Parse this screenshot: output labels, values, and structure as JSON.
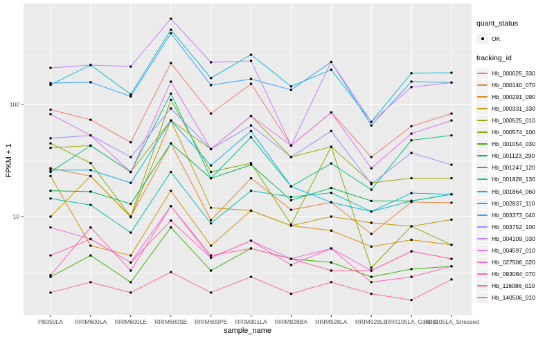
{
  "legend": {
    "quant_status_title": "quant_status",
    "ok_label": "OK",
    "tracking_id_title": "tracking_id"
  },
  "chart_data": {
    "type": "line",
    "title": "",
    "xlabel": "sample_name",
    "ylabel": "FPKM + 1",
    "x_scale": "discrete",
    "y_scale": "log10",
    "y_ticks": [
      10,
      100
    ],
    "y_minor_ticks": [
      3.162,
      31.623,
      316.23
    ],
    "ylim": [
      1.3,
      730
    ],
    "grid": "on",
    "legend_position": "right",
    "panel_bg": "#EBEBEB",
    "grid_color": "#FFFFFF",
    "marker": "point",
    "marker_color": "#000000",
    "axis_text_color": "#4D4D4D",
    "categories": [
      "PB350LA",
      "RRIM600LA",
      "RRIM600LE",
      "RRIM600SE",
      "RRIM600PE",
      "RRIM901LA",
      "RRIM928BA",
      "RRIM928LA",
      "RRIM928LE",
      "RRII105LA_Control",
      "RRII105LA_Stressed"
    ],
    "series": [
      {
        "name": "Hb_000025_330",
        "color": "#F8766D",
        "values": [
          90,
          73,
          46,
          234,
          83,
          153,
          43,
          85,
          34,
          64,
          83
        ]
      },
      {
        "name": "Hb_000140_070",
        "color": "#EA8331",
        "values": [
          27,
          23,
          10,
          45,
          9.3,
          22,
          11.5,
          13.4,
          7,
          13.5,
          13.3
        ]
      },
      {
        "name": "Hb_000291_090",
        "color": "#D89000",
        "values": [
          23,
          5.5,
          4.5,
          17,
          5.5,
          11.3,
          8.3,
          7.5,
          5.4,
          6.2,
          5.6
        ]
      },
      {
        "name": "Hb_000331_330",
        "color": "#C09B00",
        "values": [
          10,
          23,
          9.9,
          72,
          12,
          11.3,
          8.3,
          10,
          8.8,
          8.2,
          9.4
        ]
      },
      {
        "name": "Hb_000525_010",
        "color": "#A3A500",
        "values": [
          41,
          43,
          25,
          72,
          40,
          79,
          34,
          42,
          20,
          22,
          22
        ]
      },
      {
        "name": "Hb_000574_100",
        "color": "#7CAE00",
        "values": [
          45,
          30,
          10,
          110,
          25,
          30,
          8.5,
          42,
          3.5,
          8.2,
          5.6
        ]
      },
      {
        "name": "Hb_001054_030",
        "color": "#39B600",
        "values": [
          2.9,
          4.5,
          2.6,
          8,
          3.3,
          5.2,
          4.2,
          3.9,
          2.9,
          3.4,
          3.6
        ]
      },
      {
        "name": "Hb_001123_290",
        "color": "#00BB4E",
        "values": [
          17,
          16.7,
          13,
          45,
          21.9,
          29,
          14,
          18,
          13.8,
          13.8,
          15.8
        ]
      },
      {
        "name": "Hb_001247_120",
        "color": "#00C087",
        "values": [
          25,
          43,
          25,
          125,
          22,
          51,
          18.6,
          29.8,
          17.4,
          48,
          53
        ]
      },
      {
        "name": "Hb_001828_130",
        "color": "#00C0B2",
        "values": [
          14.5,
          12.7,
          7.2,
          25,
          8.7,
          17,
          15,
          16.3,
          11.1,
          13.8,
          15.8
        ]
      },
      {
        "name": "Hb_001864_060",
        "color": "#00BDD4",
        "values": [
          150,
          225,
          123,
          464,
          172,
          278,
          145,
          204,
          70,
          190,
          192
        ]
      },
      {
        "name": "Hb_002837_110",
        "color": "#00B4EF",
        "values": [
          26,
          26,
          20,
          72,
          28.6,
          58,
          18.6,
          13.4,
          11.1,
          16.2,
          15.8
        ]
      },
      {
        "name": "Hb_003373_040",
        "color": "#35A2FF",
        "values": [
          155,
          158,
          118,
          432,
          149,
          169,
          135,
          240,
          65,
          160,
          157
        ]
      },
      {
        "name": "Hb_003752_100",
        "color": "#9590FF",
        "values": [
          50,
          53,
          34,
          92,
          40,
          65,
          34,
          58,
          19.5,
          37,
          29
        ]
      },
      {
        "name": "Hb_004109_030",
        "color": "#C77CFF",
        "values": [
          212,
          225,
          218,
          582,
          238,
          245,
          43,
          240,
          70,
          143,
          157
        ]
      },
      {
        "name": "Hb_004597_010",
        "color": "#E76BF3",
        "values": [
          82,
          53,
          25,
          160,
          40,
          79,
          43,
          85,
          27,
          55,
          72
        ]
      },
      {
        "name": "Hb_027506_020",
        "color": "#FA62DB",
        "values": [
          8,
          6.3,
          3.9,
          12.4,
          4.3,
          6.1,
          4.2,
          5.2,
          3.3,
          4.9,
          4.2
        ]
      },
      {
        "name": "Hb_093084_070",
        "color": "#FF61BF",
        "values": [
          4.5,
          6.3,
          3.9,
          9.2,
          4.3,
          6.1,
          3.7,
          5.2,
          2.6,
          2.9,
          3.6
        ]
      },
      {
        "name": "Hb_116086_010",
        "color": "#FF65A1",
        "values": [
          3.0,
          8,
          3.3,
          12.4,
          4.5,
          5.2,
          4.2,
          3.3,
          3.3,
          4.9,
          4.2
        ]
      },
      {
        "name": "Hb_140506_010",
        "color": "#FF6C90",
        "values": [
          2.1,
          2.6,
          2.1,
          3.2,
          2.1,
          2.9,
          2.05,
          2.6,
          2.05,
          1.8,
          2.75
        ]
      }
    ]
  }
}
